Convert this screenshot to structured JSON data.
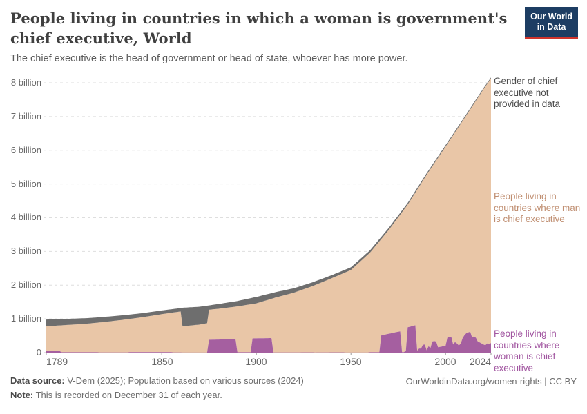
{
  "header": {
    "title": "People living in countries in which a woman is government's chief executive, World",
    "subtitle": "The chief executive is the head of government or head of state, whoever has more power.",
    "logo_line1": "Our World",
    "logo_line2": "in Data",
    "logo_colors": {
      "background": "#1d3d63",
      "underline": "#d0342c",
      "text": "#ffffff"
    }
  },
  "chart_data": {
    "type": "area",
    "stacked": true,
    "grid": "dashed horizontal",
    "x_axis": {
      "range": [
        1789,
        2024
      ],
      "ticks": [
        1789,
        1850,
        1900,
        1950,
        2000,
        2024
      ],
      "tick_labels": [
        "1789",
        "1850",
        "1900",
        "1950",
        "2000",
        "2024"
      ]
    },
    "y_axis": {
      "max": 8,
      "tick_labels": [
        "0",
        "1 billion",
        "2 billion",
        "3 billion",
        "4 billion",
        "5 billion",
        "6 billion",
        "7 billion",
        "8 billion"
      ],
      "unit": "billion people"
    },
    "legend_position": "right edge, labels colored as series",
    "series": [
      {
        "id": "woman",
        "label": "People living in countries where woman is chief executive",
        "color": "#a55fa0",
        "label_color": "#a155a0",
        "points": [
          [
            1789,
            0.05
          ],
          [
            1796,
            0.05
          ],
          [
            1797,
            0.012
          ],
          [
            1816,
            0.012
          ],
          [
            1817,
            0.004
          ],
          [
            1832,
            0.004
          ],
          [
            1833,
            0.014
          ],
          [
            1843,
            0.014
          ],
          [
            1844,
            0.016
          ],
          [
            1855,
            0.016
          ],
          [
            1856,
            0.005
          ],
          [
            1860,
            0.005
          ],
          [
            1861,
            0.003
          ],
          [
            1874,
            0.003
          ],
          [
            1875,
            0.38
          ],
          [
            1889,
            0.4
          ],
          [
            1890,
            0.012
          ],
          [
            1897,
            0.012
          ],
          [
            1898,
            0.42
          ],
          [
            1908,
            0.43
          ],
          [
            1909,
            0.004
          ],
          [
            1923,
            0.004
          ],
          [
            1924,
            0.008
          ],
          [
            1930,
            0.008
          ],
          [
            1931,
            0.003
          ],
          [
            1940,
            0.008
          ],
          [
            1946,
            0.008
          ],
          [
            1947,
            0.003
          ],
          [
            1959,
            0.003
          ],
          [
            1960,
            0.012
          ],
          [
            1965,
            0.013
          ],
          [
            1966,
            0.51
          ],
          [
            1970,
            0.56
          ],
          [
            1976,
            0.63
          ],
          [
            1977,
            0.015
          ],
          [
            1978,
            0.015
          ],
          [
            1979,
            0.058
          ],
          [
            1980,
            0.75
          ],
          [
            1984,
            0.81
          ],
          [
            1985,
            0.06
          ],
          [
            1986,
            0.12
          ],
          [
            1987,
            0.12
          ],
          [
            1988,
            0.23
          ],
          [
            1989,
            0.24
          ],
          [
            1990,
            0.07
          ],
          [
            1991,
            0.19
          ],
          [
            1992,
            0.14
          ],
          [
            1993,
            0.33
          ],
          [
            1994,
            0.34
          ],
          [
            1995,
            0.33
          ],
          [
            1996,
            0.16
          ],
          [
            1997,
            0.17
          ],
          [
            1998,
            0.18
          ],
          [
            1999,
            0.2
          ],
          [
            2000,
            0.2
          ],
          [
            2001,
            0.46
          ],
          [
            2002,
            0.46
          ],
          [
            2003,
            0.47
          ],
          [
            2004,
            0.24
          ],
          [
            2005,
            0.31
          ],
          [
            2006,
            0.27
          ],
          [
            2007,
            0.21
          ],
          [
            2008,
            0.27
          ],
          [
            2009,
            0.43
          ],
          [
            2010,
            0.52
          ],
          [
            2011,
            0.58
          ],
          [
            2012,
            0.6
          ],
          [
            2013,
            0.62
          ],
          [
            2014,
            0.45
          ],
          [
            2015,
            0.48
          ],
          [
            2016,
            0.44
          ],
          [
            2017,
            0.33
          ],
          [
            2018,
            0.3
          ],
          [
            2019,
            0.27
          ],
          [
            2020,
            0.24
          ],
          [
            2021,
            0.22
          ],
          [
            2022,
            0.27
          ],
          [
            2023,
            0.26
          ],
          [
            2024,
            0.28
          ]
        ]
      },
      {
        "id": "man",
        "label": "People living in countries where man is chief executive",
        "color": "#e9c6a7",
        "label_color": "#c08f72",
        "derived": "total_population - not_provided - woman"
      },
      {
        "id": "not_provided",
        "label": "Gender of chief executive not provided in data",
        "color": "#6e6e6e",
        "label_color": "#4d4d4d",
        "points": [
          [
            1789,
            0.2
          ],
          [
            1800,
            0.18
          ],
          [
            1820,
            0.15
          ],
          [
            1840,
            0.12
          ],
          [
            1850,
            0.11
          ],
          [
            1860,
            0.1
          ],
          [
            1861,
            0.55
          ],
          [
            1874,
            0.52
          ],
          [
            1875,
            0.13
          ],
          [
            1890,
            0.16
          ],
          [
            1900,
            0.19
          ],
          [
            1910,
            0.16
          ],
          [
            1920,
            0.13
          ],
          [
            1930,
            0.11
          ],
          [
            1940,
            0.09
          ],
          [
            1950,
            0.08
          ],
          [
            1960,
            0.07
          ],
          [
            1970,
            0.06
          ],
          [
            1980,
            0.05
          ],
          [
            1990,
            0.045
          ],
          [
            2000,
            0.04
          ],
          [
            2010,
            0.035
          ],
          [
            2024,
            0.03
          ]
        ]
      }
    ],
    "total_population_points": [
      [
        1789,
        0.98
      ],
      [
        1800,
        1.0
      ],
      [
        1810,
        1.02
      ],
      [
        1820,
        1.06
      ],
      [
        1830,
        1.11
      ],
      [
        1840,
        1.17
      ],
      [
        1850,
        1.25
      ],
      [
        1860,
        1.32
      ],
      [
        1861,
        1.33
      ],
      [
        1870,
        1.36
      ],
      [
        1875,
        1.4
      ],
      [
        1880,
        1.44
      ],
      [
        1890,
        1.53
      ],
      [
        1900,
        1.65
      ],
      [
        1910,
        1.79
      ],
      [
        1920,
        1.91
      ],
      [
        1930,
        2.09
      ],
      [
        1940,
        2.3
      ],
      [
        1950,
        2.53
      ],
      [
        1960,
        3.03
      ],
      [
        1970,
        3.7
      ],
      [
        1980,
        4.44
      ],
      [
        1990,
        5.32
      ],
      [
        2000,
        6.15
      ],
      [
        2010,
        6.99
      ],
      [
        2020,
        7.84
      ],
      [
        2024,
        8.16
      ]
    ]
  },
  "footer": {
    "data_source_label": "Data source:",
    "data_source_text": " V-Dem (2025); Population based on various sources (2024)",
    "note_label": "Note:",
    "note_text": " This is recorded on December 31 of each year.",
    "link": "OurWorldinData.org/women-rights | CC BY"
  }
}
